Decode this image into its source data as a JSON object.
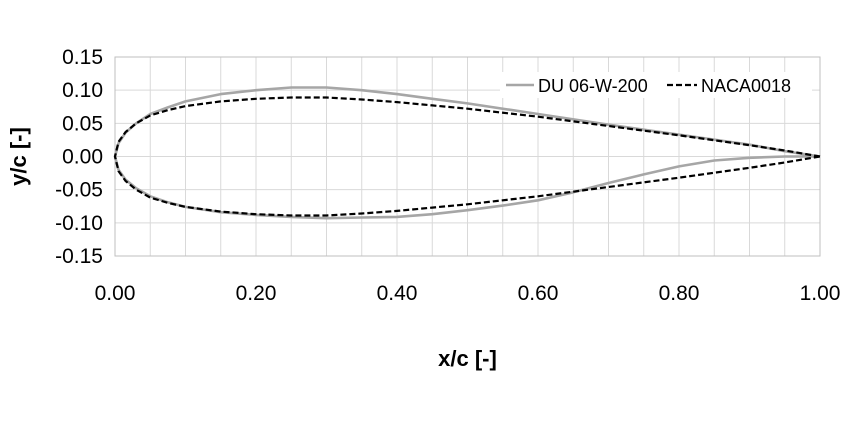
{
  "chart_data": {
    "type": "line",
    "xlabel": "x/c [-]",
    "ylabel": "y/c [-]",
    "xlim": [
      0,
      1
    ],
    "ylim": [
      -0.15,
      0.15
    ],
    "x_ticks": [
      "0.00",
      "0.20",
      "0.40",
      "0.60",
      "0.80",
      "1.00"
    ],
    "y_ticks": [
      "0.15",
      "0.10",
      "0.05",
      "0.00",
      "-0.05",
      "-0.10",
      "-0.15"
    ],
    "grid": true,
    "legend_position": "top-right",
    "series": [
      {
        "name": "DU 06-W-200",
        "color": "#a6a6a6",
        "style": "solid",
        "points": [
          [
            1.0,
            0.0
          ],
          [
            0.95,
            0.008
          ],
          [
            0.9,
            0.018
          ],
          [
            0.8,
            0.033
          ],
          [
            0.7,
            0.048
          ],
          [
            0.6,
            0.064
          ],
          [
            0.5,
            0.08
          ],
          [
            0.45,
            0.087
          ],
          [
            0.4,
            0.094
          ],
          [
            0.35,
            0.1
          ],
          [
            0.3,
            0.104
          ],
          [
            0.25,
            0.104
          ],
          [
            0.2,
            0.1
          ],
          [
            0.15,
            0.094
          ],
          [
            0.1,
            0.083
          ],
          [
            0.075,
            0.074
          ],
          [
            0.05,
            0.064
          ],
          [
            0.03,
            0.05
          ],
          [
            0.015,
            0.036
          ],
          [
            0.005,
            0.02
          ],
          [
            0.0,
            0.0
          ],
          [
            0.005,
            -0.02
          ],
          [
            0.015,
            -0.035
          ],
          [
            0.03,
            -0.048
          ],
          [
            0.05,
            -0.06
          ],
          [
            0.075,
            -0.069
          ],
          [
            0.1,
            -0.076
          ],
          [
            0.15,
            -0.084
          ],
          [
            0.2,
            -0.088
          ],
          [
            0.25,
            -0.091
          ],
          [
            0.3,
            -0.093
          ],
          [
            0.35,
            -0.092
          ],
          [
            0.4,
            -0.091
          ],
          [
            0.45,
            -0.087
          ],
          [
            0.5,
            -0.081
          ],
          [
            0.55,
            -0.074
          ],
          [
            0.6,
            -0.066
          ],
          [
            0.65,
            -0.054
          ],
          [
            0.7,
            -0.04
          ],
          [
            0.75,
            -0.027
          ],
          [
            0.8,
            -0.015
          ],
          [
            0.85,
            -0.006
          ],
          [
            0.9,
            -0.002
          ],
          [
            0.95,
            0.0
          ],
          [
            1.0,
            0.0
          ]
        ]
      },
      {
        "name": "NACA0018",
        "color": "#000000",
        "style": "dashed",
        "points": [
          [
            1.0,
            0.0
          ],
          [
            0.95,
            0.009
          ],
          [
            0.9,
            0.017
          ],
          [
            0.8,
            0.032
          ],
          [
            0.7,
            0.046
          ],
          [
            0.6,
            0.06
          ],
          [
            0.5,
            0.072
          ],
          [
            0.45,
            0.077
          ],
          [
            0.4,
            0.082
          ],
          [
            0.35,
            0.086
          ],
          [
            0.3,
            0.089
          ],
          [
            0.25,
            0.089
          ],
          [
            0.2,
            0.087
          ],
          [
            0.15,
            0.083
          ],
          [
            0.1,
            0.076
          ],
          [
            0.075,
            0.07
          ],
          [
            0.05,
            0.062
          ],
          [
            0.03,
            0.05
          ],
          [
            0.015,
            0.037
          ],
          [
            0.005,
            0.022
          ],
          [
            0.0,
            0.0
          ],
          [
            0.005,
            -0.022
          ],
          [
            0.015,
            -0.037
          ],
          [
            0.03,
            -0.05
          ],
          [
            0.05,
            -0.062
          ],
          [
            0.075,
            -0.07
          ],
          [
            0.1,
            -0.076
          ],
          [
            0.15,
            -0.083
          ],
          [
            0.2,
            -0.087
          ],
          [
            0.25,
            -0.089
          ],
          [
            0.3,
            -0.089
          ],
          [
            0.35,
            -0.086
          ],
          [
            0.4,
            -0.082
          ],
          [
            0.45,
            -0.077
          ],
          [
            0.5,
            -0.072
          ],
          [
            0.6,
            -0.06
          ],
          [
            0.7,
            -0.046
          ],
          [
            0.8,
            -0.032
          ],
          [
            0.9,
            -0.017
          ],
          [
            0.95,
            -0.009
          ],
          [
            1.0,
            0.0
          ]
        ]
      }
    ]
  }
}
